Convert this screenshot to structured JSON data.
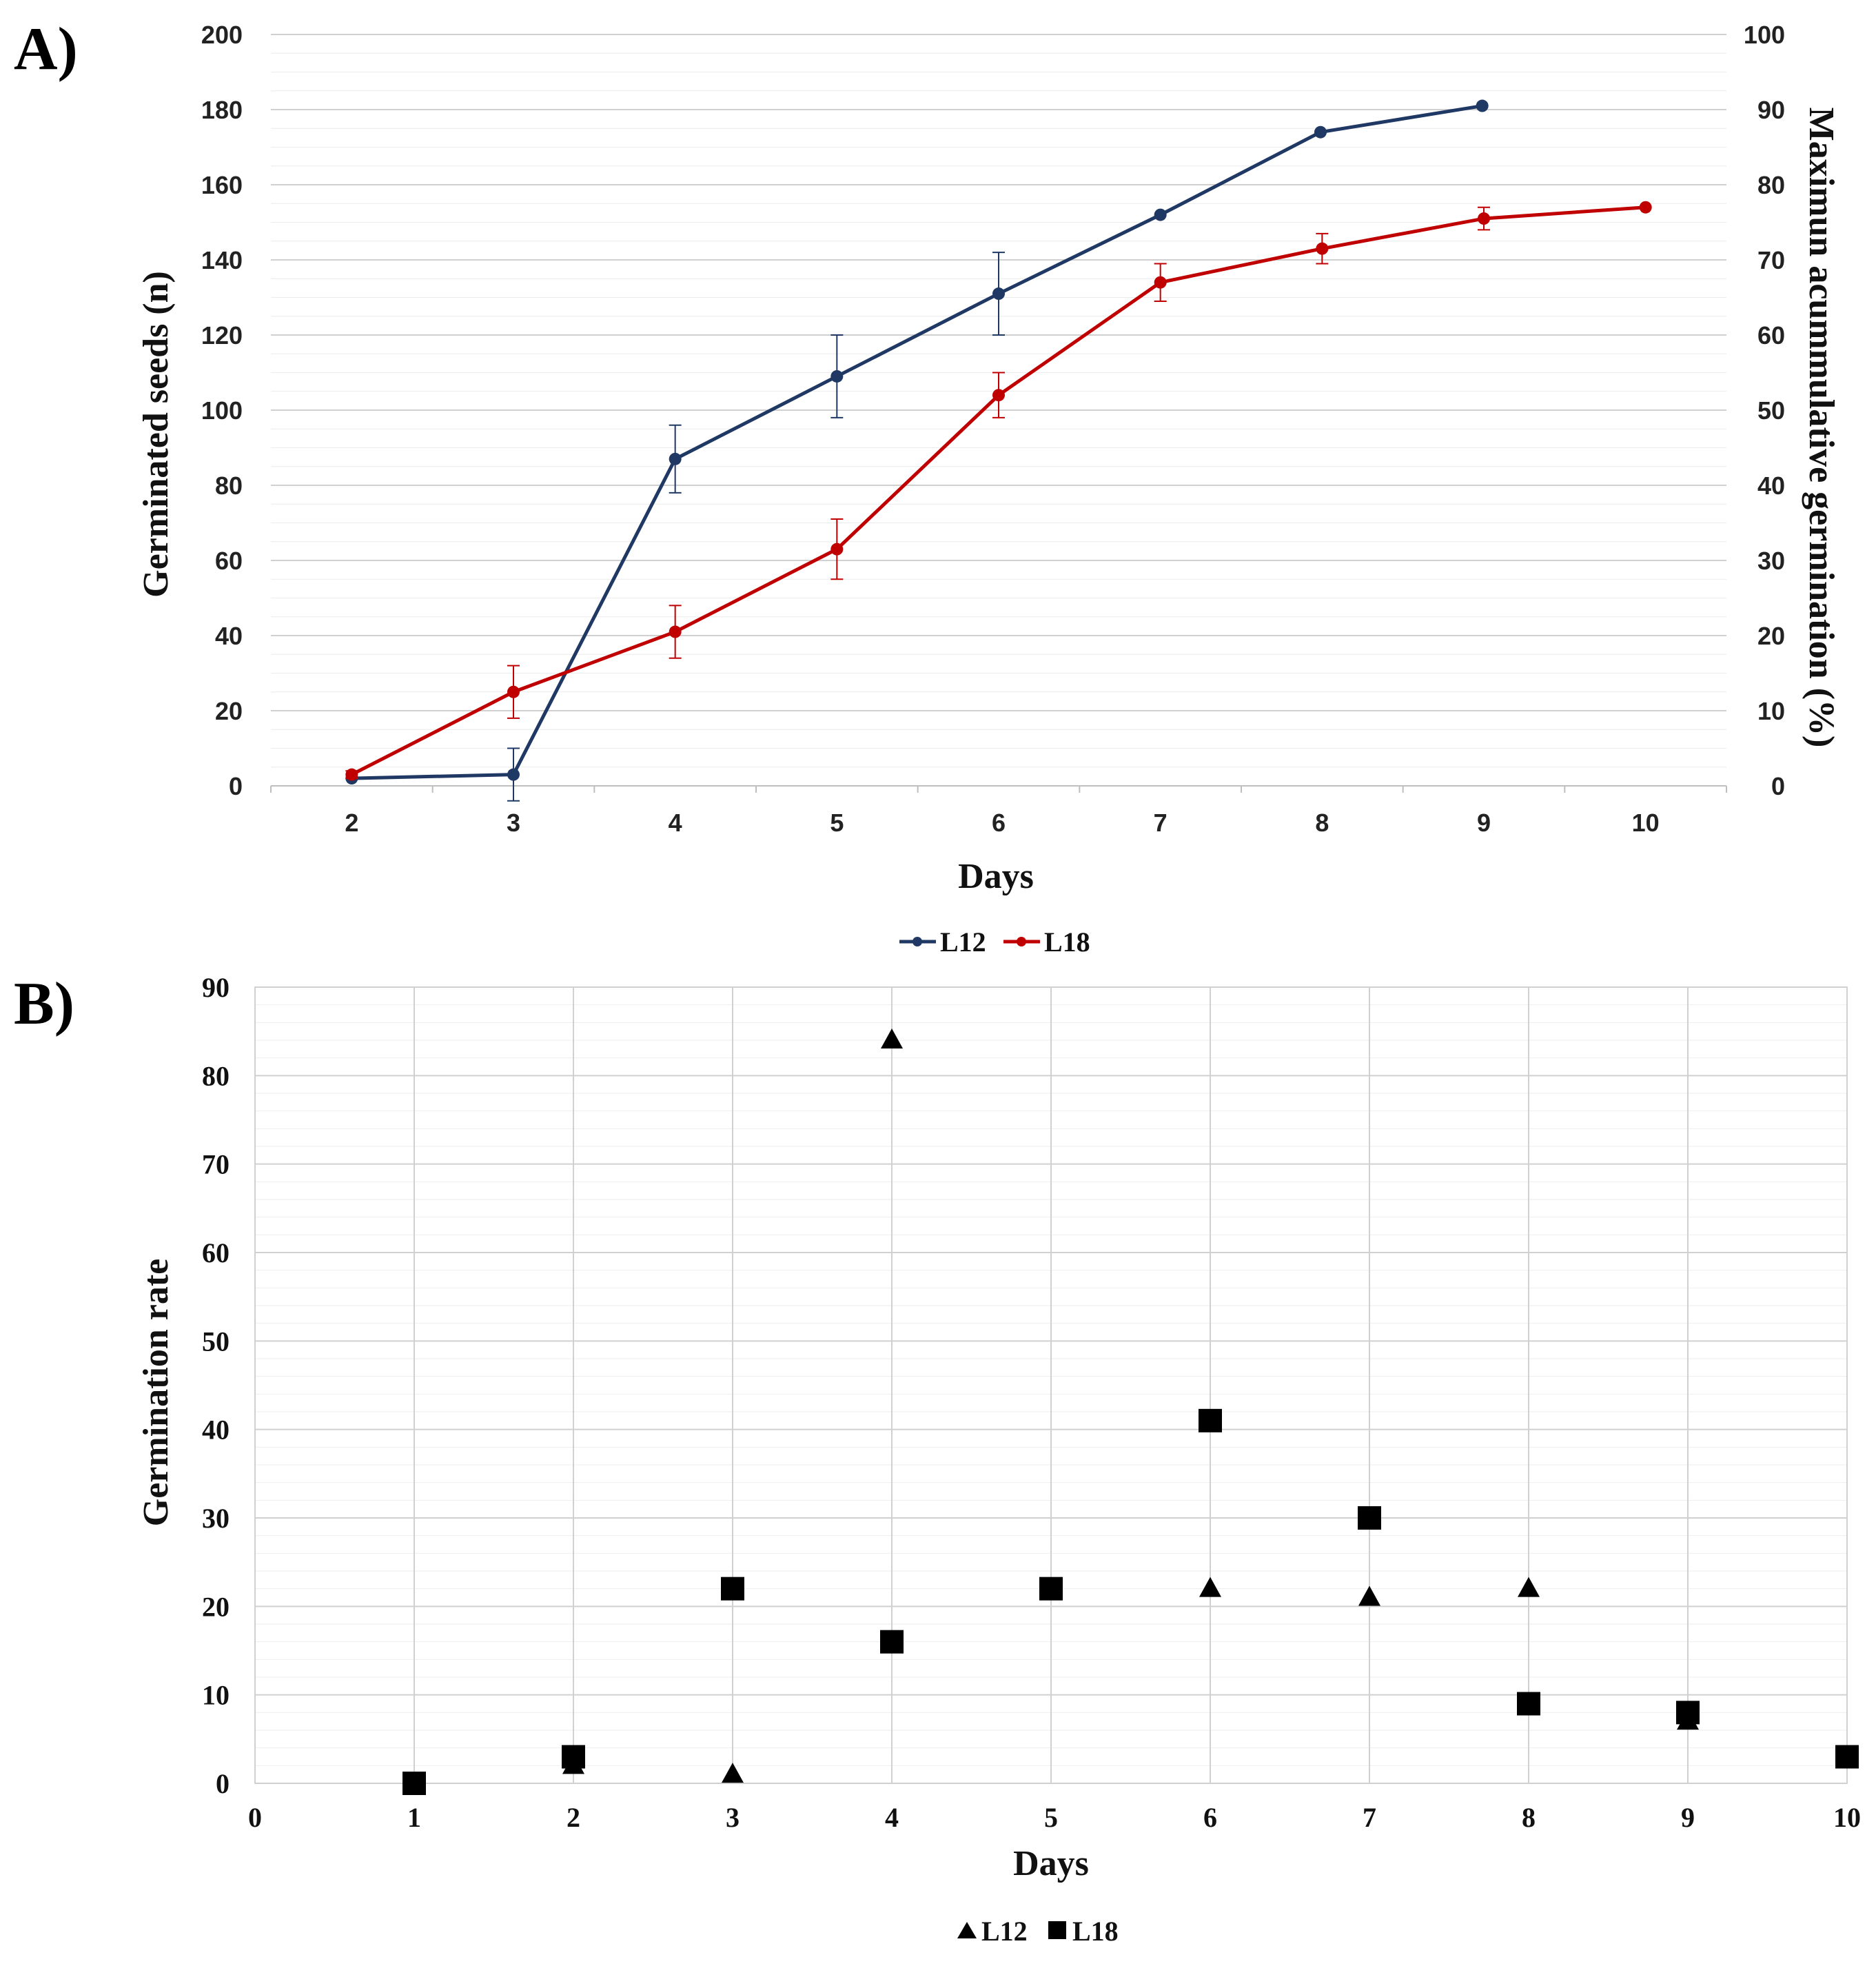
{
  "colors": {
    "L12_line": "#1f3864",
    "L18_line": "#c00000",
    "markers_b": "#000000",
    "grid": "#d9d9d9"
  },
  "chart_data": [
    {
      "panel_label": "A)",
      "type": "line",
      "xlabel": "Days",
      "ylabel": "Germinated seeds (n)",
      "y2label": "Maximun acummulative germination (%)",
      "categories": [
        2,
        3,
        4,
        5,
        6,
        7,
        8,
        9,
        10
      ],
      "category_labels": [
        "2",
        "3",
        "4",
        "5",
        "6",
        "7",
        "8",
        "9",
        "10"
      ],
      "ylim": [
        0,
        200
      ],
      "yticks": [
        "0",
        "20",
        "40",
        "60",
        "80",
        "100",
        "120",
        "140",
        "160",
        "180",
        "200"
      ],
      "y2lim": [
        0,
        100
      ],
      "y2ticks": [
        "0",
        "10",
        "20",
        "30",
        "40",
        "50",
        "60",
        "70",
        "80",
        "90",
        "100"
      ],
      "series": [
        {
          "name": "L12",
          "x": [
            2,
            3,
            4,
            5,
            6,
            7,
            7.99,
            8.99
          ],
          "values": [
            2,
            3,
            87,
            109,
            131,
            152,
            174,
            181
          ],
          "errors": [
            0,
            7,
            9,
            11,
            11,
            0,
            0,
            0
          ]
        },
        {
          "name": "L18",
          "x": [
            2,
            3,
            4,
            5,
            6,
            7,
            8,
            9,
            10
          ],
          "values": [
            3,
            25,
            41,
            63,
            104,
            134,
            143,
            151,
            154
          ],
          "errors": [
            1,
            7,
            7,
            8,
            6,
            5,
            4,
            3,
            0
          ]
        }
      ],
      "legend": [
        "L12",
        "L18"
      ],
      "legend_position": "bottom"
    },
    {
      "panel_label": "B)",
      "type": "scatter",
      "xlabel": "Days",
      "ylabel": "Germination rate",
      "xlim": [
        0,
        10
      ],
      "xticks": [
        "0",
        "1",
        "2",
        "3",
        "4",
        "5",
        "6",
        "7",
        "8",
        "9",
        "10"
      ],
      "ylim": [
        0,
        90
      ],
      "yticks": [
        "0",
        "10",
        "20",
        "30",
        "40",
        "50",
        "60",
        "70",
        "80",
        "90"
      ],
      "series": [
        {
          "name": "L12",
          "marker": "triangle",
          "x": [
            1,
            2,
            3,
            4,
            6,
            7,
            8,
            9
          ],
          "values": [
            0,
            2,
            1,
            84,
            22,
            21,
            22,
            7
          ]
        },
        {
          "name": "L18",
          "marker": "square",
          "x": [
            1,
            2,
            3,
            4,
            5,
            6,
            7,
            8,
            9,
            10
          ],
          "values": [
            0,
            3,
            22,
            16,
            22,
            41,
            30,
            9,
            8,
            3
          ]
        }
      ],
      "legend": [
        "L12",
        "L18"
      ],
      "legend_position": "bottom"
    }
  ]
}
